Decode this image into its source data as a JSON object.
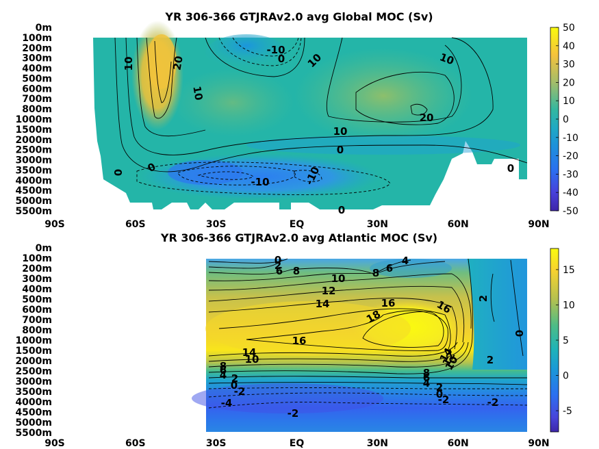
{
  "chart_data": [
    {
      "type": "heatmap",
      "title": "YR 306-366 GTJRAv2.0 avg  Global MOC (Sv)",
      "x_tick_labels": [
        "90S",
        "60S",
        "30S",
        "EQ",
        "30N",
        "60N",
        "90N"
      ],
      "x_ticks": [
        -90,
        -60,
        -30,
        0,
        30,
        60,
        90
      ],
      "y_tick_labels": [
        "0m",
        "100m",
        "200m",
        "300m",
        "400m",
        "500m",
        "600m",
        "700m",
        "800m",
        "1000m",
        "1500m",
        "2000m",
        "2500m",
        "3000m",
        "3500m",
        "4000m",
        "4500m",
        "5000m",
        "5500m"
      ],
      "colorbar": {
        "ticks": [
          50,
          40,
          30,
          20,
          10,
          0,
          -10,
          -20,
          -30,
          -40,
          -50
        ],
        "range": [
          -50,
          50
        ]
      },
      "contour_labels": [
        "10",
        "20",
        "10",
        "-10",
        "0",
        "10",
        "10",
        "20",
        "10",
        "0",
        "0",
        "-10",
        "0",
        "-10",
        "0",
        "0"
      ]
    },
    {
      "type": "heatmap",
      "title": "YR 306-366 GTJRAv2.0 avg  Atlantic MOC (Sv)",
      "x_tick_labels": [
        "90S",
        "60S",
        "30S",
        "EQ",
        "30N",
        "60N",
        "90N"
      ],
      "x_ticks": [
        -90,
        -60,
        -30,
        0,
        30,
        60,
        90
      ],
      "y_tick_labels": [
        "0m",
        "100m",
        "200m",
        "300m",
        "400m",
        "500m",
        "600m",
        "700m",
        "800m",
        "1000m",
        "1500m",
        "2000m",
        "2500m",
        "3000m",
        "3500m",
        "4000m",
        "4500m",
        "5000m",
        "5500m"
      ],
      "colorbar": {
        "ticks": [
          15,
          10,
          5,
          0,
          -5
        ],
        "range": [
          -8,
          18
        ]
      },
      "contour_labels": [
        "0",
        "2",
        "6",
        "8",
        "4",
        "6",
        "8",
        "10",
        "12",
        "14",
        "16",
        "16",
        "18",
        "16",
        "14",
        "10",
        "8",
        "6",
        "4",
        "2",
        "0",
        "-2",
        "-4",
        "8",
        "6",
        "4",
        "2",
        "0",
        "-2",
        "-2",
        "-2",
        "14",
        "12",
        "10",
        "2",
        "0",
        "-2",
        "14",
        "2"
      ]
    }
  ]
}
